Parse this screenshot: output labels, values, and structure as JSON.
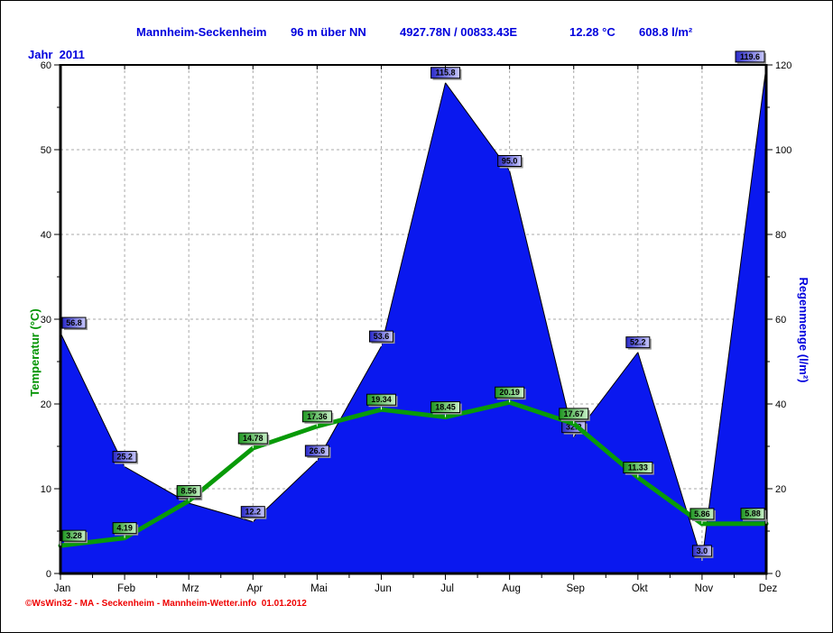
{
  "header": {
    "station": "Mannheim-Seckenheim",
    "elevation": "96 m über NN",
    "coordinates": "4927.78N / 00833.43E",
    "mean_temperature": "12.28 °C",
    "total_rainfall": "608.8 l/m²"
  },
  "year_label": "Jahr  2011",
  "footer_credit": "©WsWin32 - MA - Seckenheim - Mannheim-Wetter.info  01.01.2012",
  "colors": {
    "rain_area": "#0a18ef",
    "temperature_line": "#089a08",
    "header_text": "#0000dd",
    "footer_text": "#ee0000",
    "grid": "#aaaaaa",
    "axis": "#000000",
    "rain_label_gradient": [
      "#2828c8",
      "#c8c8fa"
    ],
    "temp_label_gradient": [
      "#1e9620",
      "#c8f0c8"
    ]
  },
  "chart_data": {
    "type": "area+line",
    "title": "Jahr 2011 — Mannheim-Seckenheim",
    "categories": [
      "Jan",
      "Feb",
      "Mrz",
      "Apr",
      "Mai",
      "Jun",
      "Jul",
      "Aug",
      "Sep",
      "Okt",
      "Nov",
      "Dez"
    ],
    "series": [
      {
        "name": "Regenmenge",
        "display": "area",
        "axis": "right",
        "color": "#0a18ef",
        "values": [
          56.8,
          25.2,
          16.6,
          12.2,
          26.6,
          53.6,
          115.8,
          95.0,
          32.2,
          52.2,
          3.0,
          119.6
        ],
        "point_labels": [
          "56.8",
          "25.2",
          "16.6",
          "12.2",
          "26.6",
          "53.6",
          "115.8",
          "95.0",
          "32.2",
          "52.2",
          "3.0",
          "119.6"
        ]
      },
      {
        "name": "Temperatur",
        "display": "line",
        "axis": "left",
        "color": "#089a08",
        "values": [
          3.28,
          4.19,
          8.56,
          14.78,
          17.36,
          19.34,
          18.45,
          20.19,
          17.67,
          11.33,
          5.86,
          5.88
        ],
        "point_labels": [
          "3.28",
          "4.19",
          "8.56",
          "14.78",
          "17.36",
          "19.34",
          "18.45",
          "20.19",
          "17.67",
          "11.33",
          "5.86",
          "5.88"
        ]
      }
    ],
    "left_axis": {
      "label": "Temperatur  (°C)",
      "min": 0,
      "max": 60,
      "major_step": 10,
      "minor_step": 5,
      "tick_labels": [
        "0",
        "10",
        "20",
        "30",
        "40",
        "50",
        "60"
      ]
    },
    "right_axis": {
      "label": "Regenmenge  (l/m²)",
      "min": 0,
      "max": 120,
      "major_step": 20,
      "minor_step": 10,
      "tick_labels": [
        "0",
        "20",
        "40",
        "60",
        "80",
        "100",
        "120"
      ]
    },
    "grid": {
      "horizontal": "dashed",
      "vertical": "dashed",
      "color": "#aaaaaa"
    },
    "legend_position": "none"
  }
}
